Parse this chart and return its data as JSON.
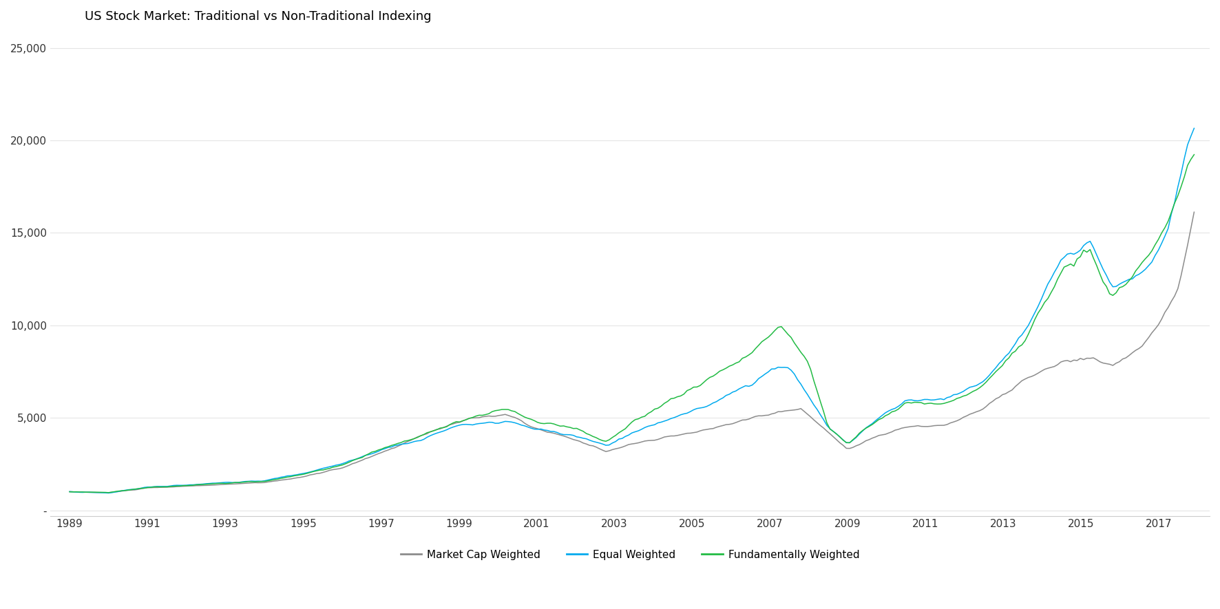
{
  "title": "US Stock Market: Traditional vs Non-Traditional Indexing",
  "title_fontsize": 13,
  "colors": {
    "market_cap": "#8C8C8C",
    "equal_weighted": "#00AAEE",
    "fundamentally_weighted": "#22BB44"
  },
  "legend_labels": [
    "Market Cap Weighted",
    "Equal Weighted",
    "Fundamentally Weighted"
  ],
  "yticks": [
    0,
    5000,
    10000,
    15000,
    20000,
    25000
  ],
  "ytick_labels": [
    "-",
    "5,000",
    "10,000",
    "15,000",
    "20,000",
    "25,000"
  ],
  "xtick_start": 1989,
  "xtick_end": 2017,
  "xtick_step": 2,
  "ylim": [
    -300,
    26000
  ],
  "xlim_start": 1988.5,
  "xlim_end": 2018.3,
  "linewidth": 1.1,
  "background_color": "#FFFFFF"
}
